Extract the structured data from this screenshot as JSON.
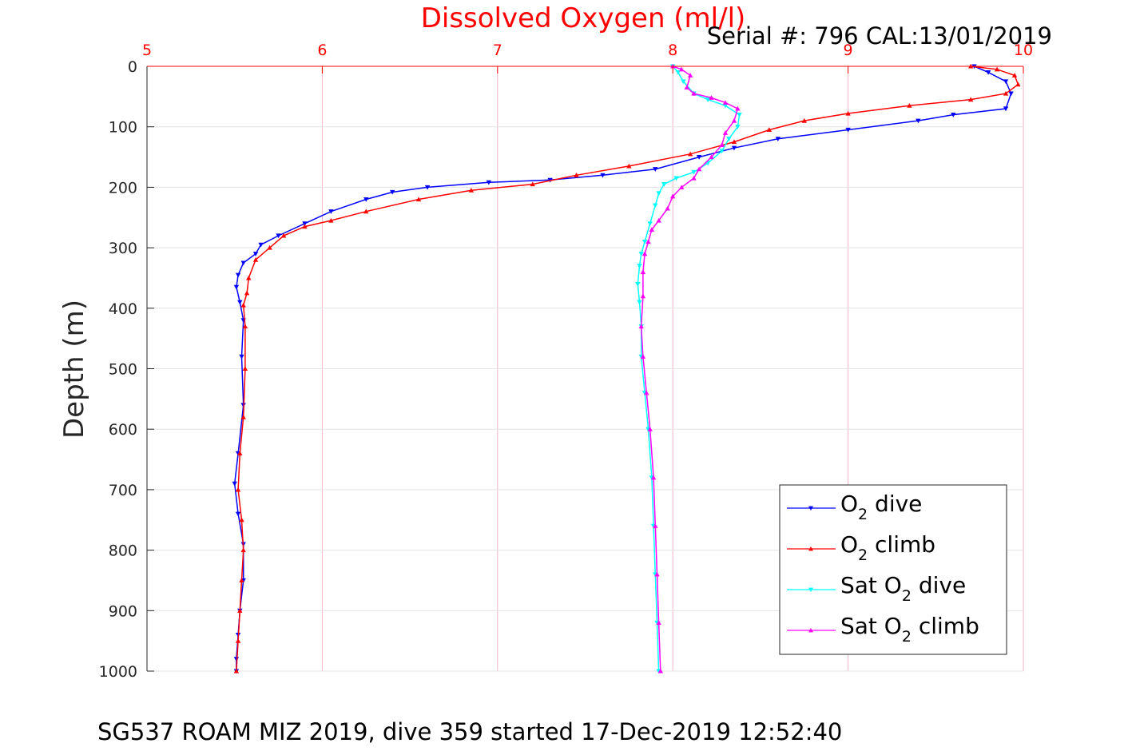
{
  "figure": {
    "title": "Dissolved Oxygen (ml/l)",
    "serial": "Serial #: 796  CAL:13/01/2019",
    "footer": "SG537 ROAM MIZ 2019, dive 359 started 17-Dec-2019 12:52:40"
  },
  "colors": {
    "o2_dive": "#0000ff",
    "o2_climb": "#ff0000",
    "sat_dive": "#00ffff",
    "sat_climb": "#ff00ff",
    "grid_x": "#f0b6c6",
    "grid_y": "#e3e3e3",
    "top_axis": "#ff0000"
  },
  "chart_data": {
    "type": "line",
    "title": "Dissolved Oxygen (ml/l)",
    "xlabel": "",
    "ylabel": "Depth (m)",
    "xlim": [
      5,
      10
    ],
    "ylim": [
      0,
      1000
    ],
    "y_reversed": true,
    "x_axis_position": "top",
    "x_ticks": [
      "5",
      "6",
      "7",
      "8",
      "9",
      "10"
    ],
    "y_ticks": [
      "0",
      "100",
      "200",
      "300",
      "400",
      "500",
      "600",
      "700",
      "800",
      "900",
      "1000"
    ],
    "grid": true,
    "legend_position": "bottom-right",
    "series": [
      {
        "name": "O2 dive",
        "color": "#0000ff",
        "marker": "triangle-down",
        "points": [
          [
            9.72,
            0
          ],
          [
            9.8,
            10
          ],
          [
            9.9,
            25
          ],
          [
            9.93,
            45
          ],
          [
            9.9,
            70
          ],
          [
            9.6,
            80
          ],
          [
            9.4,
            90
          ],
          [
            9.0,
            105
          ],
          [
            8.6,
            120
          ],
          [
            8.35,
            135
          ],
          [
            8.15,
            150
          ],
          [
            7.9,
            170
          ],
          [
            7.6,
            180
          ],
          [
            7.3,
            188
          ],
          [
            6.95,
            192
          ],
          [
            6.6,
            200
          ],
          [
            6.4,
            208
          ],
          [
            6.25,
            220
          ],
          [
            6.05,
            240
          ],
          [
            5.9,
            260
          ],
          [
            5.75,
            280
          ],
          [
            5.65,
            295
          ],
          [
            5.62,
            310
          ],
          [
            5.55,
            325
          ],
          [
            5.52,
            345
          ],
          [
            5.51,
            365
          ],
          [
            5.53,
            390
          ],
          [
            5.55,
            420
          ],
          [
            5.54,
            480
          ],
          [
            5.55,
            560
          ],
          [
            5.52,
            640
          ],
          [
            5.5,
            690
          ],
          [
            5.52,
            740
          ],
          [
            5.55,
            790
          ],
          [
            5.55,
            850
          ],
          [
            5.53,
            900
          ],
          [
            5.52,
            940
          ],
          [
            5.51,
            980
          ],
          [
            5.51,
            1000
          ]
        ]
      },
      {
        "name": "O2 climb",
        "color": "#ff0000",
        "marker": "triangle-up",
        "points": [
          [
            9.7,
            0
          ],
          [
            9.85,
            5
          ],
          [
            9.95,
            15
          ],
          [
            9.97,
            30
          ],
          [
            9.9,
            45
          ],
          [
            9.7,
            55
          ],
          [
            9.35,
            65
          ],
          [
            9.0,
            78
          ],
          [
            8.75,
            90
          ],
          [
            8.55,
            105
          ],
          [
            8.35,
            125
          ],
          [
            8.1,
            145
          ],
          [
            7.75,
            165
          ],
          [
            7.45,
            180
          ],
          [
            7.2,
            195
          ],
          [
            6.85,
            205
          ],
          [
            6.55,
            220
          ],
          [
            6.25,
            240
          ],
          [
            6.05,
            255
          ],
          [
            5.9,
            265
          ],
          [
            5.78,
            280
          ],
          [
            5.7,
            300
          ],
          [
            5.62,
            320
          ],
          [
            5.58,
            350
          ],
          [
            5.57,
            375
          ],
          [
            5.55,
            395
          ],
          [
            5.56,
            430
          ],
          [
            5.56,
            500
          ],
          [
            5.55,
            580
          ],
          [
            5.53,
            640
          ],
          [
            5.52,
            700
          ],
          [
            5.54,
            750
          ],
          [
            5.55,
            800
          ],
          [
            5.54,
            850
          ],
          [
            5.53,
            900
          ],
          [
            5.52,
            950
          ],
          [
            5.51,
            1000
          ]
        ]
      },
      {
        "name": "Sat O2 dive",
        "color": "#00ffff",
        "marker": "triangle-down",
        "points": [
          [
            8.0,
            0
          ],
          [
            8.03,
            10
          ],
          [
            8.06,
            25
          ],
          [
            8.12,
            45
          ],
          [
            8.2,
            55
          ],
          [
            8.3,
            65
          ],
          [
            8.38,
            80
          ],
          [
            8.37,
            100
          ],
          [
            8.32,
            120
          ],
          [
            8.28,
            140
          ],
          [
            8.2,
            160
          ],
          [
            8.12,
            175
          ],
          [
            8.02,
            185
          ],
          [
            7.95,
            195
          ],
          [
            7.92,
            210
          ],
          [
            7.9,
            230
          ],
          [
            7.87,
            260
          ],
          [
            7.84,
            290
          ],
          [
            7.82,
            310
          ],
          [
            7.81,
            330
          ],
          [
            7.8,
            360
          ],
          [
            7.81,
            390
          ],
          [
            7.82,
            430
          ],
          [
            7.82,
            480
          ],
          [
            7.84,
            540
          ],
          [
            7.86,
            600
          ],
          [
            7.88,
            680
          ],
          [
            7.89,
            760
          ],
          [
            7.9,
            840
          ],
          [
            7.91,
            920
          ],
          [
            7.92,
            1000
          ]
        ]
      },
      {
        "name": "Sat O2 climb",
        "color": "#ff00ff",
        "marker": "triangle-up",
        "points": [
          [
            8.0,
            0
          ],
          [
            8.05,
            5
          ],
          [
            8.1,
            15
          ],
          [
            8.08,
            35
          ],
          [
            8.12,
            45
          ],
          [
            8.22,
            52
          ],
          [
            8.3,
            60
          ],
          [
            8.37,
            70
          ],
          [
            8.35,
            90
          ],
          [
            8.3,
            110
          ],
          [
            8.28,
            130
          ],
          [
            8.22,
            150
          ],
          [
            8.15,
            170
          ],
          [
            8.12,
            185
          ],
          [
            8.05,
            200
          ],
          [
            8.0,
            215
          ],
          [
            7.97,
            235
          ],
          [
            7.92,
            255
          ],
          [
            7.88,
            270
          ],
          [
            7.86,
            290
          ],
          [
            7.84,
            310
          ],
          [
            7.83,
            340
          ],
          [
            7.83,
            380
          ],
          [
            7.82,
            430
          ],
          [
            7.83,
            480
          ],
          [
            7.85,
            540
          ],
          [
            7.87,
            600
          ],
          [
            7.89,
            680
          ],
          [
            7.9,
            760
          ],
          [
            7.91,
            840
          ],
          [
            7.92,
            920
          ],
          [
            7.93,
            1000
          ]
        ]
      }
    ]
  },
  "legend": {
    "entries": [
      {
        "pre": "O",
        "sub": "2",
        "post": " dive"
      },
      {
        "pre": "O",
        "sub": "2",
        "post": " climb"
      },
      {
        "pre": "Sat O",
        "sub": "2",
        "post": " dive"
      },
      {
        "pre": "Sat O",
        "sub": "2",
        "post": " climb"
      }
    ]
  }
}
